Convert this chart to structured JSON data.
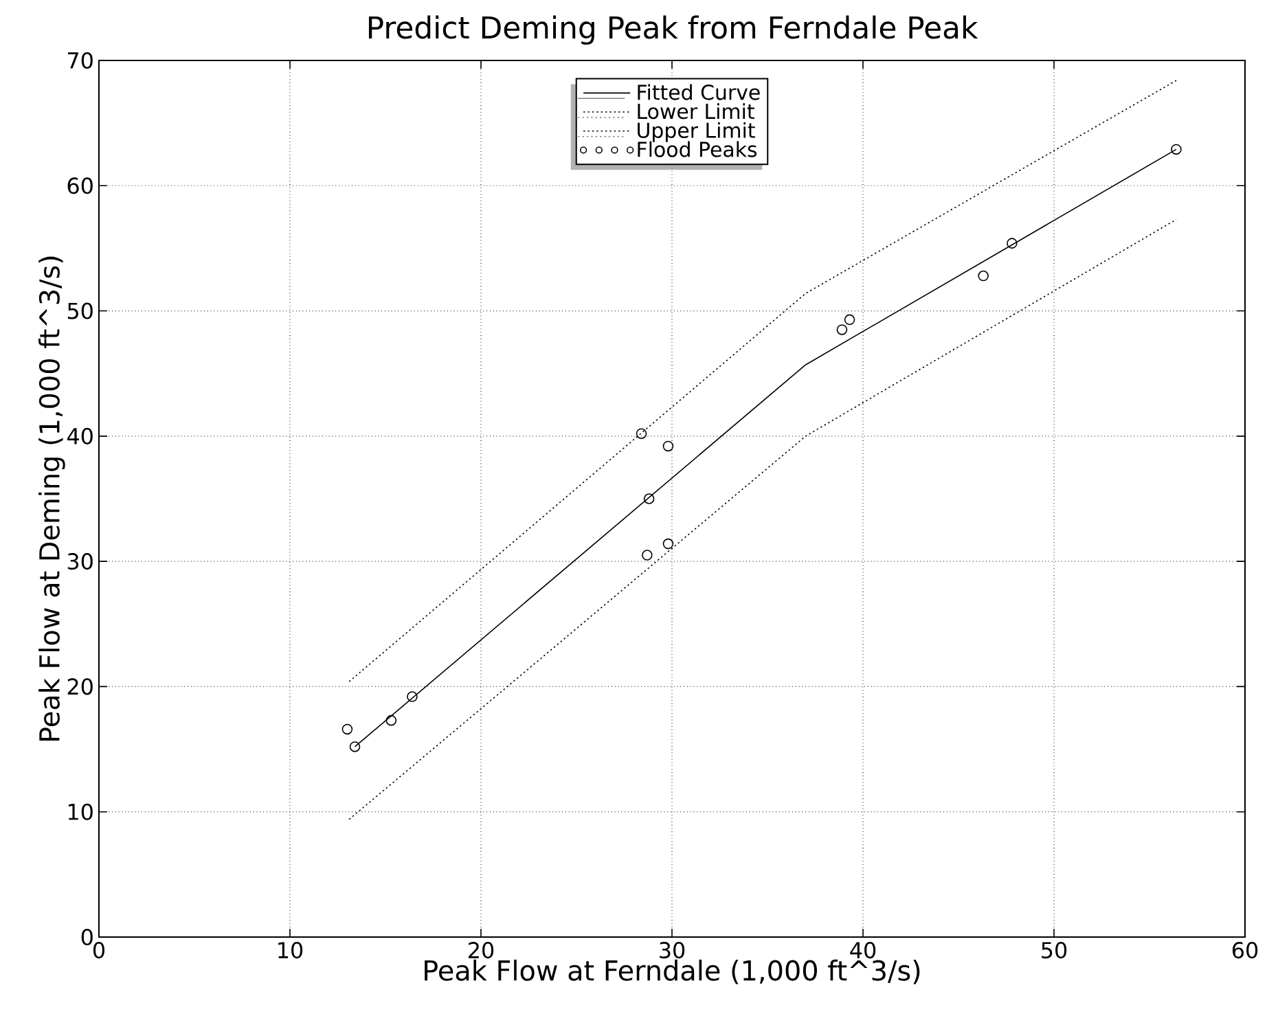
{
  "chart_data": {
    "type": "line",
    "title": "Predict Deming Peak from Ferndale Peak",
    "xlabel": "Peak  Flow at Ferndale (1,000 ft^3/s)",
    "ylabel": "Peak Flow  at  Deming (1,000 ft^3/s)",
    "xlim": [
      0,
      60
    ],
    "ylim": [
      0,
      70
    ],
    "xticks": [
      0,
      10,
      20,
      30,
      40,
      50,
      60
    ],
    "yticks": [
      0,
      10,
      20,
      30,
      40,
      50,
      60,
      70
    ],
    "grid": true,
    "legend": "top",
    "series": [
      {
        "name": "Fitted Curve",
        "color": "#000000",
        "line_style": "solid",
        "marker": "none",
        "x": [
          13.4,
          37,
          56.4
        ],
        "values": [
          15.2,
          45.7,
          62.9
        ]
      },
      {
        "name": "Lower Limit",
        "color": "#000000",
        "line_style": "dotted",
        "marker": "none",
        "x": [
          13.1,
          37,
          56.4
        ],
        "values": [
          9.4,
          40.0,
          57.3
        ]
      },
      {
        "name": "Upper Limit",
        "color": "#000000",
        "line_style": "dotted",
        "marker": "none",
        "x": [
          13.1,
          37,
          56.4
        ],
        "values": [
          20.4,
          51.4,
          68.4
        ]
      },
      {
        "name": "Flood Peaks",
        "type": "scatter",
        "color": "#000000",
        "marker": "circle",
        "x": [
          13.0,
          13.4,
          15.3,
          16.4,
          28.4,
          28.8,
          28.7,
          29.8,
          29.8,
          38.9,
          39.3,
          46.3,
          47.8,
          56.4
        ],
        "values": [
          16.6,
          15.2,
          17.3,
          19.2,
          40.2,
          35.0,
          30.5,
          39.2,
          31.4,
          48.5,
          49.3,
          52.8,
          55.4,
          62.9
        ]
      }
    ]
  }
}
